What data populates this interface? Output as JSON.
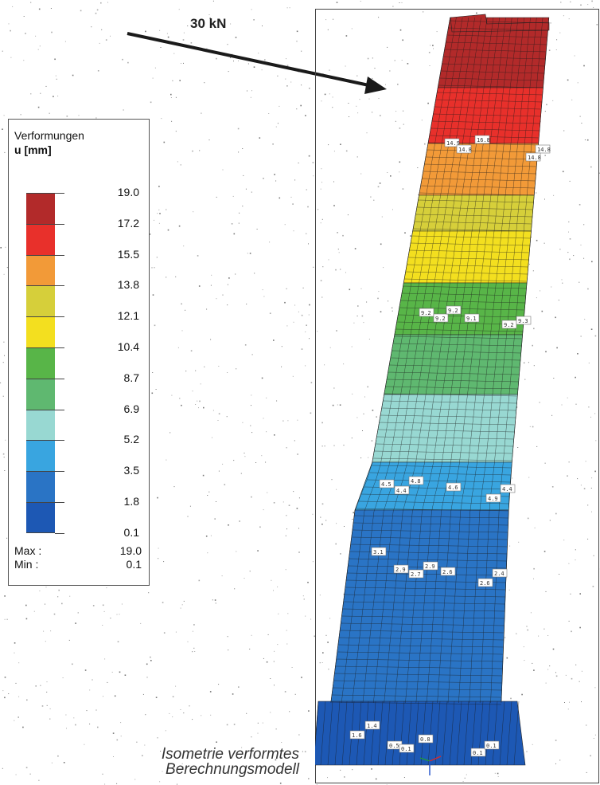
{
  "force": {
    "label": "30 kN"
  },
  "legend": {
    "title": "Verformungen",
    "unit": "u [mm]",
    "levels": [
      "19.0",
      "17.2",
      "15.5",
      "13.8",
      "12.1",
      "10.4",
      "8.7",
      "6.9",
      "5.2",
      "3.5",
      "1.8",
      "0.1"
    ],
    "colors": [
      "#b22a2a",
      "#e8302b",
      "#f29a38",
      "#d6cf3a",
      "#f3df1f",
      "#58b548",
      "#5fb870",
      "#98d8d2",
      "#39a5e0",
      "#2a74c5",
      "#1d58b4"
    ],
    "max_label": "Max :",
    "max_value": "19.0",
    "min_label": "Min :",
    "min_value": "0.1"
  },
  "model_labels": [
    "14.9",
    "14.8",
    "16.8",
    "14.8",
    "14.8",
    "9.2",
    "9.2",
    "9.2",
    "9.1",
    "9.2",
    "9.3",
    "4.5",
    "4.4",
    "4.8",
    "4.6",
    "4.9",
    "4.4",
    "3.1",
    "2.9",
    "2.7",
    "2.9",
    "2.6",
    "2.6",
    "2.4",
    "1.6",
    "1.4",
    "0.5",
    "0.1",
    "0.8",
    "0.1",
    "0.1"
  ],
  "caption": {
    "line1": "Isometrie verformtes",
    "line2": "Berechnungsmodell"
  }
}
